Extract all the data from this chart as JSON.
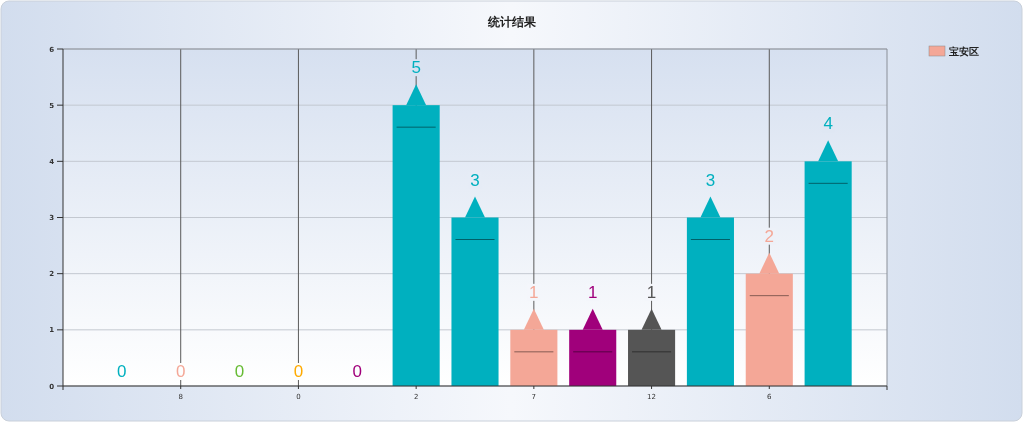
{
  "chart_data": {
    "type": "bar",
    "title": "统计结果",
    "categories": [
      null,
      "8",
      null,
      "0",
      null,
      "2",
      null,
      "7",
      null,
      "12",
      null,
      "6",
      null
    ],
    "series": [
      {
        "name": "宝安区",
        "color": "#f4a797",
        "colors": [
          "#00b0bf",
          "#f4a797",
          "#66bb33",
          "#ffaa00",
          "#a0007b",
          "#00b0bf",
          "#00b0bf",
          "#f4a797",
          "#a0007b",
          "#555555",
          "#00b0bf",
          "#f4a797",
          "#00b0bf"
        ],
        "values": [
          0,
          0,
          0,
          0,
          0,
          5,
          3,
          1,
          1,
          1,
          3,
          2,
          4
        ]
      }
    ],
    "ylim": [
      0,
      6
    ],
    "yticks": [
      0,
      1,
      2,
      3,
      4,
      5,
      6
    ],
    "grid": true,
    "legend": "top right",
    "data_labels": true
  }
}
